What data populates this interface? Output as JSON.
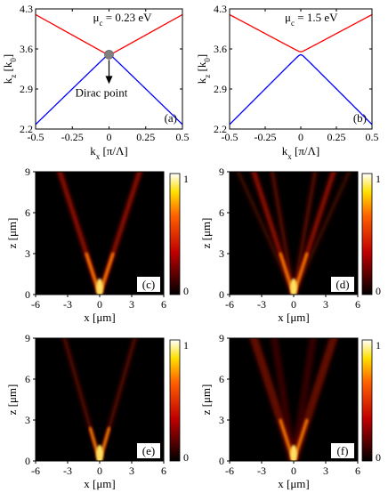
{
  "figure": {
    "panels": {
      "a": {
        "tag": "(a)",
        "mu_label": "μ",
        "mu_sub": "c",
        "mu_value": "= 0.23 eV",
        "annotation": "Dirac point"
      },
      "b": {
        "tag": "(b)",
        "mu_label": "μ",
        "mu_sub": "c",
        "mu_value": "= 1.5 eV"
      },
      "c": {
        "tag": "(c)"
      },
      "d": {
        "tag": "(d)"
      },
      "e": {
        "tag": "(e)"
      },
      "f": {
        "tag": "(f)"
      }
    },
    "dispersion_axes": {
      "xlabel_main": "k",
      "xlabel_sub": "x",
      "xlabel_unit": " [π/Λ]",
      "ylabel_main": "k",
      "ylabel_sub": "z",
      "ylabel_unit": " [k",
      "ylabel_unit_sub": "0",
      "ylabel_unit_close": "]",
      "xticks": [
        "-0.5",
        "-0.25",
        "0",
        "0.25",
        "0.5"
      ],
      "yticks": [
        "4.3",
        "3.6",
        "2.9",
        "2.2"
      ]
    },
    "field_axes": {
      "xlabel": "x [μm]",
      "ylabel": "z [μm]",
      "xticks": [
        "-6",
        "-3",
        "0",
        "3",
        "6"
      ],
      "yticks": [
        "9",
        "6",
        "3",
        "0"
      ],
      "colorbar_ticks": [
        "1",
        "0"
      ]
    },
    "colors": {
      "upper_band": "#ff0000",
      "lower_band": "#0000ff",
      "dirac_marker": "#808080"
    }
  },
  "chart_data": [
    {
      "type": "line",
      "panel": "a",
      "xlim": [
        -0.5,
        0.5
      ],
      "ylim": [
        2.2,
        4.3
      ],
      "series": [
        {
          "x": [
            -0.5,
            -0.25,
            0,
            0.25,
            0.5
          ],
          "y": [
            4.2,
            3.83,
            3.5,
            3.83,
            4.2
          ]
        },
        {
          "x": [
            -0.5,
            -0.25,
            0,
            0.25,
            0.5
          ],
          "y": [
            2.28,
            2.98,
            3.5,
            2.98,
            2.28
          ]
        }
      ],
      "annotations": [
        {
          "text": "Dirac point",
          "x": 0,
          "y": 3.5
        }
      ]
    },
    {
      "type": "line",
      "panel": "b",
      "xlim": [
        -0.5,
        0.5
      ],
      "ylim": [
        2.2,
        4.3
      ],
      "series": [
        {
          "x": [
            -0.5,
            -0.25,
            0,
            0.25,
            0.5
          ],
          "y": [
            4.2,
            3.88,
            3.55,
            3.88,
            4.2
          ]
        },
        {
          "x": [
            -0.5,
            -0.25,
            0,
            0.25,
            0.5
          ],
          "y": [
            2.28,
            2.96,
            3.5,
            2.96,
            2.28
          ]
        }
      ]
    },
    {
      "type": "heatmap",
      "panel": "c",
      "xlim": [
        -6,
        6
      ],
      "ylim": [
        0,
        9
      ],
      "zlim": [
        0,
        1
      ],
      "beam_origin": [
        0,
        0
      ],
      "beam_half_angle_deg": 18
    },
    {
      "type": "heatmap",
      "panel": "d",
      "xlim": [
        -6,
        6
      ],
      "ylim": [
        0,
        9
      ],
      "zlim": [
        0,
        1
      ],
      "beam_origin": [
        0,
        0
      ],
      "beam_half_angle_deg": 18
    },
    {
      "type": "heatmap",
      "panel": "e",
      "xlim": [
        -6,
        6
      ],
      "ylim": [
        0,
        9
      ],
      "zlim": [
        0,
        1
      ],
      "beam_origin": [
        0,
        0
      ],
      "beam_half_angle_deg": 16
    },
    {
      "type": "heatmap",
      "panel": "f",
      "xlim": [
        -6,
        6
      ],
      "ylim": [
        0,
        9
      ],
      "zlim": [
        0,
        1
      ],
      "beam_origin": [
        0,
        0
      ],
      "beam_half_angle_deg": 18
    }
  ]
}
